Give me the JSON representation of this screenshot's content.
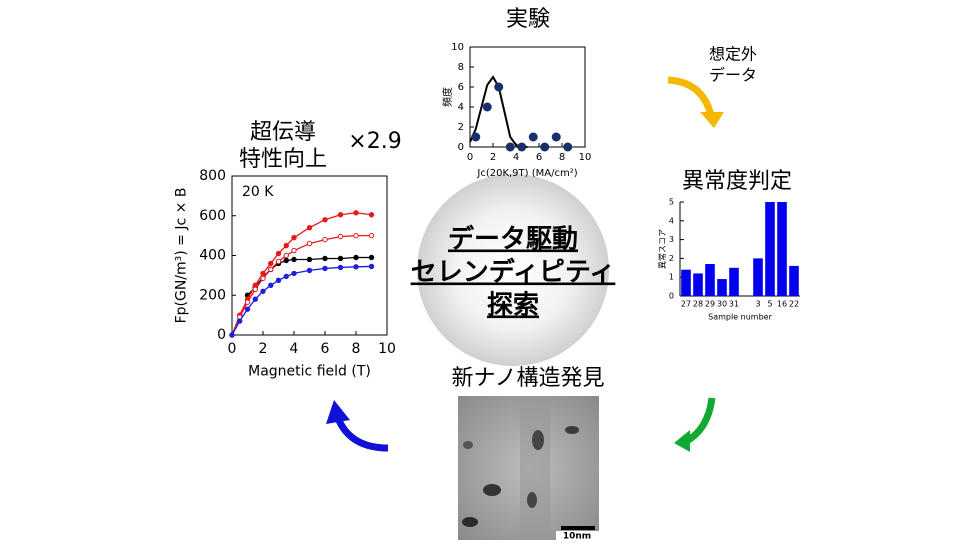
{
  "center": {
    "lines": [
      "データ駆動",
      "セレンディピティ",
      "探索"
    ]
  },
  "flow": {
    "unexpected": [
      "想定外",
      "データ"
    ],
    "discovery": "新ナノ構造発見",
    "scale_bar": "10nm"
  },
  "chart_data": [
    {
      "type": "line",
      "title": [
        "超伝導",
        "特性向上"
      ],
      "annotations": [
        "×2.9",
        "20 K"
      ],
      "x_label": "Magnetic field (T)",
      "y_label": "Fp(GN/m³) = Jc × B",
      "xlim": [
        0,
        10
      ],
      "xticks": [
        0,
        2,
        4,
        6,
        8,
        10
      ],
      "ylim": [
        0,
        800
      ],
      "yticks": [
        0,
        200,
        400,
        600,
        800
      ],
      "x": [
        0,
        0.5,
        1,
        1.5,
        2,
        2.5,
        3,
        3.5,
        4,
        5,
        6,
        7,
        8,
        9
      ],
      "series": [
        {
          "color": "#000000",
          "marker": "filled",
          "values": [
            null,
            null,
            200,
            240,
            290,
            330,
            360,
            375,
            380,
            380,
            385,
            385,
            390,
            390
          ]
        },
        {
          "color": "#e8191a",
          "marker": "filled",
          "values": [
            0,
            100,
            180,
            250,
            310,
            360,
            410,
            450,
            490,
            540,
            580,
            605,
            615,
            605
          ]
        },
        {
          "color": "#e8191a",
          "marker": "open",
          "values": [
            0,
            90,
            165,
            230,
            285,
            330,
            370,
            400,
            425,
            460,
            480,
            495,
            500,
            500
          ]
        },
        {
          "color": "#1f1fe0",
          "marker": "filled",
          "values": [
            0,
            70,
            130,
            180,
            220,
            250,
            275,
            295,
            310,
            325,
            335,
            340,
            343,
            345
          ]
        }
      ]
    },
    {
      "type": "scatter",
      "title": "実験",
      "x_label": "Jc(20K,9T) (MA/cm²)",
      "y_label": "頻度",
      "xlim": [
        0,
        10
      ],
      "xticks": [
        0,
        2,
        4,
        6,
        8,
        10
      ],
      "ylim": [
        0,
        10
      ],
      "yticks": [
        0,
        2,
        4,
        6,
        8,
        10
      ],
      "series": [
        {
          "color": "#000000",
          "kind": "line",
          "x": [
            0,
            0.5,
            1,
            1.5,
            2,
            2.5,
            3,
            3.5,
            4,
            4.5,
            5
          ],
          "values": [
            0.5,
            1.8,
            4,
            6.2,
            7,
            6,
            3.5,
            1,
            0.2,
            0,
            0
          ]
        },
        {
          "color": "#17306b",
          "kind": "points",
          "x": [
            0.5,
            1.5,
            2.5,
            3.5,
            4.5,
            5.5,
            6.5,
            7.5,
            8.5
          ],
          "values": [
            1,
            4,
            6,
            0,
            0,
            1,
            0,
            1,
            0
          ]
        }
      ]
    },
    {
      "type": "bar",
      "title": "異常度判定",
      "x_label": "Sample number",
      "y_label": "異常スコア",
      "color": "#0000ee",
      "ylim": [
        0,
        5
      ],
      "yticks": [
        0,
        1,
        2,
        3,
        4,
        5
      ],
      "categories": [
        "27",
        "28",
        "29",
        "30",
        "31",
        null,
        "3",
        "5",
        "16",
        "22"
      ],
      "values": [
        1.4,
        1.2,
        1.7,
        0.9,
        1.5,
        null,
        2,
        5,
        5,
        1.6
      ]
    }
  ]
}
